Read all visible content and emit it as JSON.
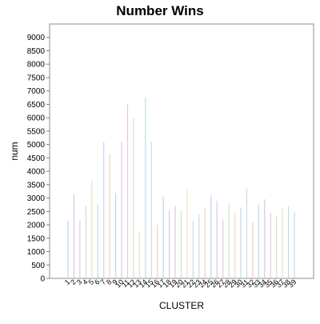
{
  "chart_data": {
    "type": "bar",
    "title": "Number Wins",
    "xlabel": "CLUSTER",
    "ylabel": "num",
    "ylim": [
      0,
      9500
    ],
    "yticks": [
      0,
      500,
      1000,
      1500,
      2000,
      2500,
      3000,
      3500,
      4000,
      4500,
      5000,
      5500,
      6000,
      6500,
      7000,
      7500,
      8000,
      8500,
      9000
    ],
    "categories": [
      "1",
      "2",
      "3",
      "4",
      "5",
      "6",
      "7",
      "8",
      "9",
      "10",
      "11",
      "12",
      "13",
      "14",
      "15",
      "16",
      "17",
      "18",
      "19",
      "20",
      "21",
      "22",
      "23",
      "24",
      "25",
      "26",
      "27",
      "28",
      "29",
      "30",
      "31",
      "32",
      "33",
      "34",
      "35",
      "36",
      "37",
      "38",
      "39"
    ],
    "values": [
      2150,
      3150,
      2150,
      2700,
      3650,
      2750,
      5100,
      4650,
      3200,
      5100,
      6500,
      6000,
      1750,
      6750,
      5100,
      2000,
      3050,
      2550,
      2700,
      2550,
      3300,
      2150,
      2400,
      2600,
      3100,
      2900,
      2200,
      2800,
      2450,
      2650,
      3350,
      2100,
      2750,
      2950,
      2450,
      2300,
      2600,
      2700,
      2500
    ],
    "colors": [
      "#a9c9e0",
      "#c9b7e2",
      "#e4b2c6",
      "#b2dcc4",
      "#ead7a7",
      "#a9d2dc",
      "#c4c4ea",
      "#eac0a7"
    ],
    "grid": false,
    "legend": "none"
  }
}
